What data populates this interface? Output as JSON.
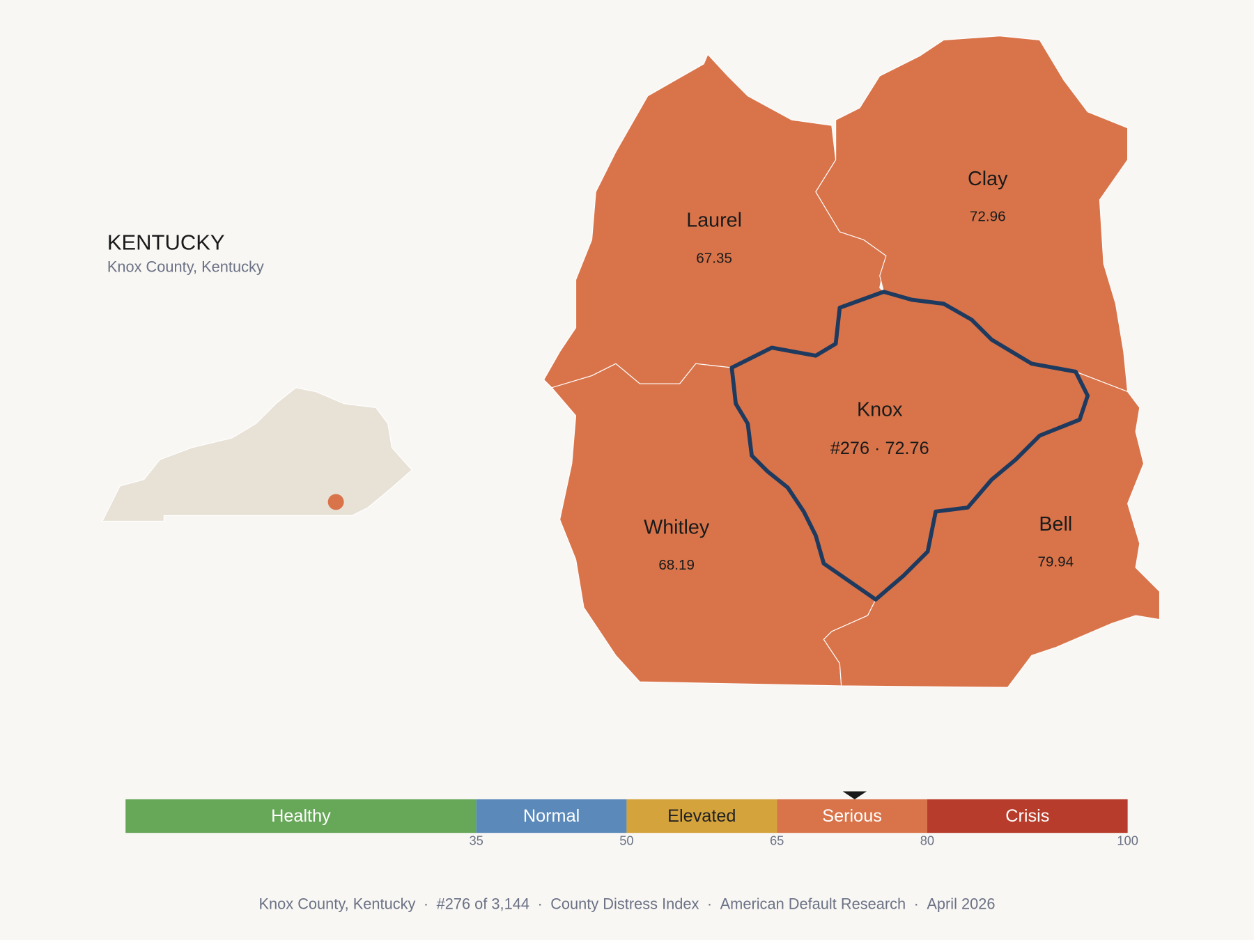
{
  "header": {
    "title": "KENTUCKY",
    "subtitle": "Knox County, Kentucky"
  },
  "map": {
    "counties": [
      {
        "name": "Laurel",
        "value": 67.35
      },
      {
        "name": "Clay",
        "value": 72.96
      },
      {
        "name": "Knox",
        "value": 72.76,
        "value_label": "#276 · 72.76",
        "selected": true
      },
      {
        "name": "Whitley",
        "value": 68.19
      },
      {
        "name": "Bell",
        "value": 79.94
      }
    ],
    "selected_outline_color": "#1f3a5f",
    "inset_color": "#e8e2d6"
  },
  "scale": {
    "bands": [
      {
        "name": "Healthy",
        "from": 0,
        "to": 35,
        "color": "#66a758",
        "text_color": "#ffffff"
      },
      {
        "name": "Normal",
        "from": 35,
        "to": 50,
        "color": "#5b8aba",
        "text_color": "#ffffff"
      },
      {
        "name": "Elevated",
        "from": 50,
        "to": 65,
        "color": "#d4a33c",
        "text_color": "#222222"
      },
      {
        "name": "Serious",
        "from": 65,
        "to": 80,
        "color": "#d9744a",
        "text_color": "#ffffff"
      },
      {
        "name": "Crisis",
        "from": 80,
        "to": 100,
        "color": "#b83c2b",
        "text_color": "#ffffff"
      }
    ],
    "ticks": [
      35,
      50,
      65,
      80,
      100
    ]
  },
  "footer": {
    "items": [
      "Knox County, Kentucky",
      "#276 of 3,144",
      "County Distress Index",
      "American Default Research",
      "April 2026"
    ],
    "separator": "·"
  }
}
